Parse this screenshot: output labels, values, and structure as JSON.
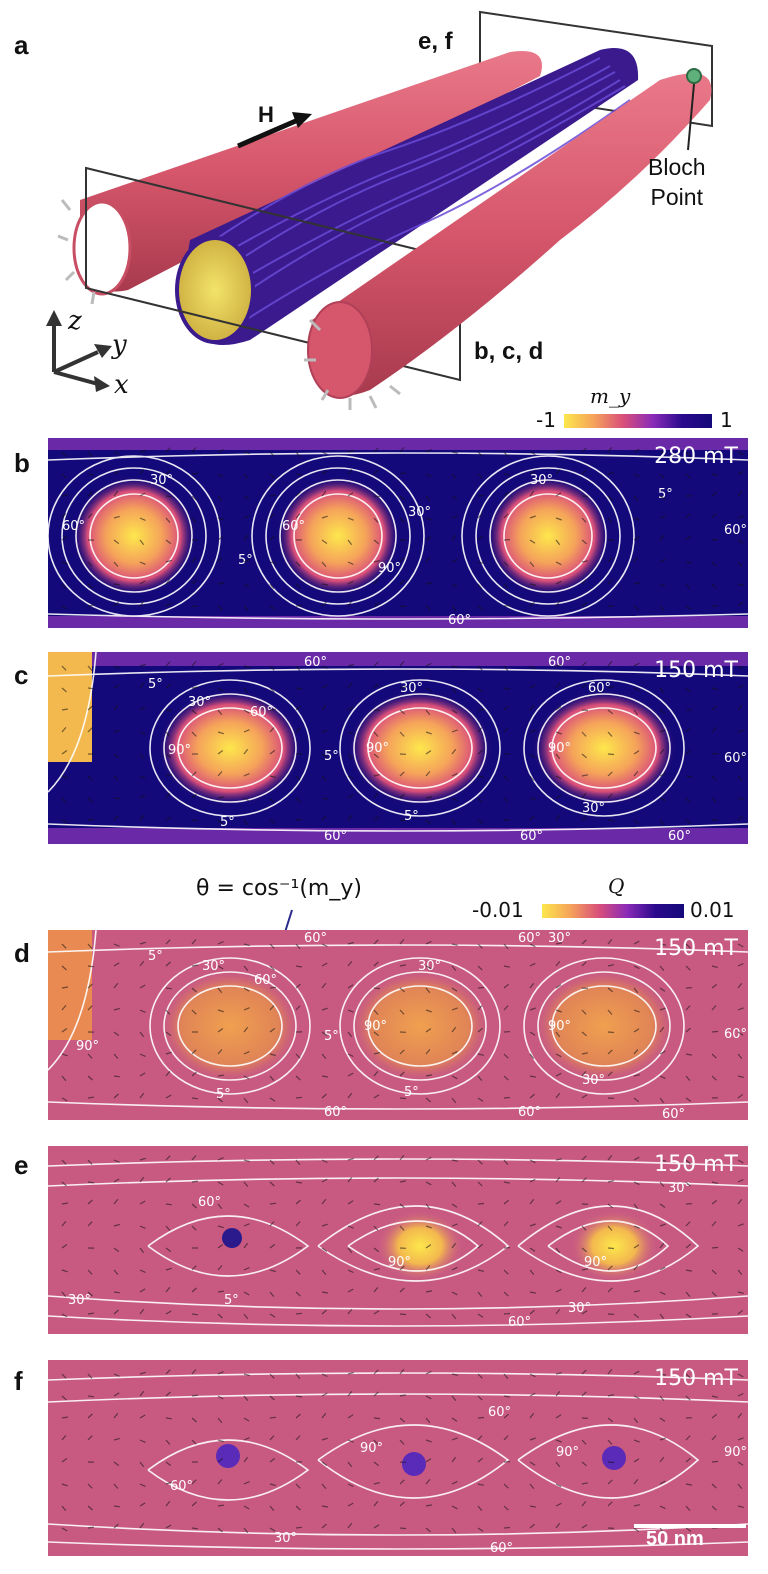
{
  "panels": {
    "a": {
      "label": "a",
      "cut_planes": {
        "ef": "e, f",
        "bcd": "b, c, d"
      },
      "field_arrow": "H",
      "bloch_point": [
        "Bloch",
        "Point"
      ],
      "axes": {
        "z": "z",
        "y": "y",
        "x": "x"
      }
    },
    "b": {
      "label": "b",
      "field": "280 mT",
      "contours": [
        "30°",
        "60°",
        "90°",
        "60°",
        "90°",
        "30°",
        "5°",
        "30°",
        "5°",
        "60°",
        "60°"
      ]
    },
    "c": {
      "label": "c",
      "field": "150 mT",
      "contours": [
        "60°",
        "60°",
        "5°",
        "30°",
        "90°",
        "60°",
        "30°",
        "90°",
        "60°",
        "30°",
        "5°",
        "5°",
        "5°",
        "30°",
        "60°",
        "60°",
        "60°",
        "60°"
      ]
    },
    "d": {
      "label": "d",
      "field": "150 mT",
      "contours": [
        "60°",
        "60°",
        "5°",
        "30°",
        "90°",
        "60°",
        "30°",
        "90°",
        "30°",
        "5°",
        "5°",
        "5°",
        "30°",
        "60°",
        "60°",
        "60°",
        "60°",
        "30°"
      ]
    },
    "e": {
      "label": "e",
      "field": "150 mT",
      "contours": [
        "60°",
        "90°",
        "90°",
        "30°",
        "5°",
        "60°",
        "30°",
        "30°"
      ]
    },
    "f": {
      "label": "f",
      "field": "150 mT",
      "contours": [
        "60°",
        "90°",
        "60°",
        "90°",
        "30°",
        "60°",
        "90°"
      ],
      "scalebar": "50 nm"
    }
  },
  "colorbars": {
    "my": {
      "title": "m_y",
      "min": "-1",
      "max": "1",
      "colors": [
        "#fde74c",
        "#f5a35a",
        "#d94f7a",
        "#8a2bb8",
        "#2a0a8c",
        "#14097a"
      ]
    },
    "Q": {
      "title": "Q",
      "min": "-0.01",
      "max": "0.01",
      "colors": [
        "#fde74c",
        "#f5a35a",
        "#d94f7a",
        "#8a2bb8",
        "#2a0a8c",
        "#14097a"
      ]
    }
  },
  "annotation": {
    "theta": "θ = cos⁻¹(m_y)"
  },
  "colors": {
    "tube": "#d6566b",
    "deep_blue": "#14097a",
    "yellow": "#fde74c",
    "magenta_bg": "#c85a82"
  }
}
